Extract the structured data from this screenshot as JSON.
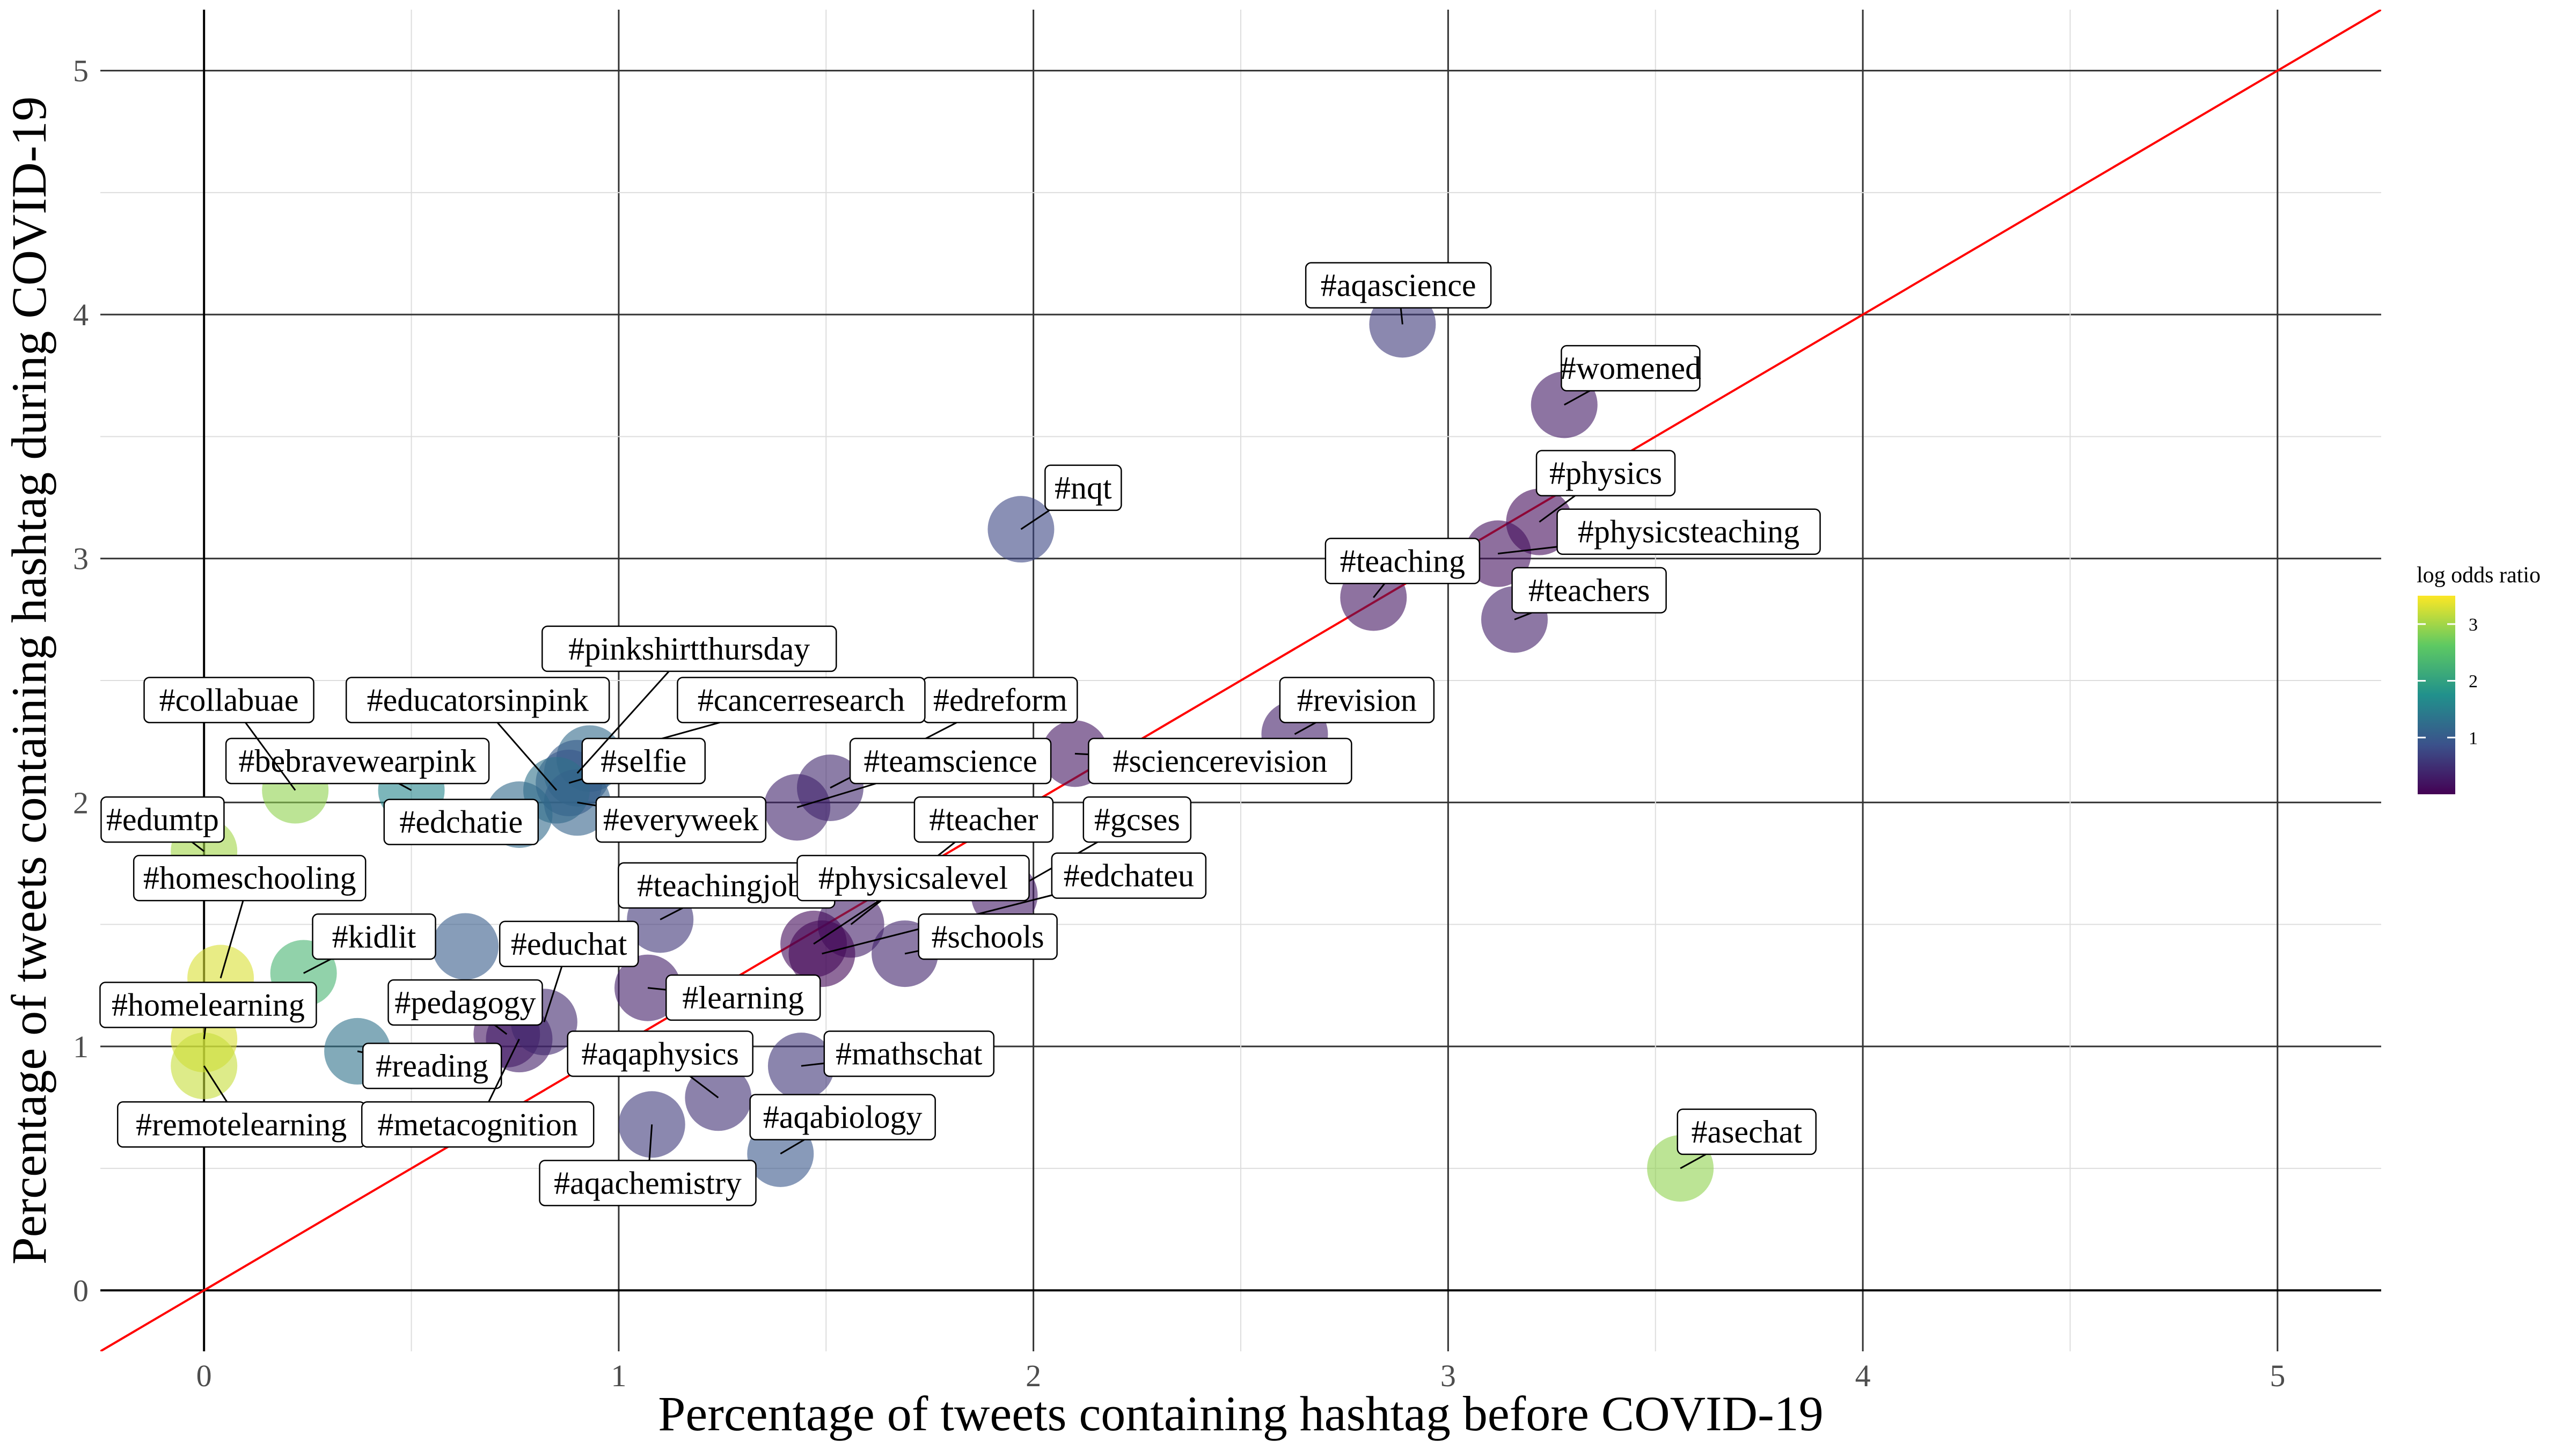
{
  "chart_data": {
    "type": "scatter",
    "xlabel": "Percentage of tweets containing hashtag before COVID-19",
    "ylabel": "Percentage of tweets containing hashtag during COVID-19",
    "xlim": [
      -0.25,
      5.25
    ],
    "ylim": [
      -0.25,
      5.25
    ],
    "x_ticks": [
      "0",
      "1",
      "2",
      "3",
      "4",
      "5"
    ],
    "y_ticks": [
      "0",
      "1",
      "2",
      "3",
      "4",
      "5"
    ],
    "reference_line": {
      "slope": 1,
      "intercept": 0,
      "color": "#ff0000"
    },
    "grid": true,
    "legend": {
      "title": "log odds ratio",
      "placement": "right",
      "range": [
        0,
        3.5
      ],
      "ticks": [
        "1",
        "2",
        "3"
      ],
      "palette": "viridis"
    },
    "points": [
      {
        "label": "#aqascience",
        "x": 2.89,
        "y": 3.96,
        "log_odds": 0.6,
        "lx": 2.88,
        "ly": 4.12
      },
      {
        "label": "#womened",
        "x": 3.28,
        "y": 3.63,
        "log_odds": 0.25,
        "lx": 3.44,
        "ly": 3.78
      },
      {
        "label": "#physics",
        "x": 3.22,
        "y": 3.15,
        "log_odds": 0.1,
        "lx": 3.38,
        "ly": 3.35
      },
      {
        "label": "#physicsteaching",
        "x": 3.12,
        "y": 3.02,
        "log_odds": 0.15,
        "lx": 3.58,
        "ly": 3.11
      },
      {
        "label": "#teaching",
        "x": 2.82,
        "y": 2.84,
        "log_odds": 0.2,
        "lx": 2.89,
        "ly": 2.99
      },
      {
        "label": "#teachers",
        "x": 3.16,
        "y": 2.75,
        "log_odds": 0.3,
        "lx": 3.34,
        "ly": 2.87
      },
      {
        "label": "#nqt",
        "x": 1.97,
        "y": 3.12,
        "log_odds": 0.75,
        "lx": 2.12,
        "ly": 3.29
      },
      {
        "label": "#revision",
        "x": 2.63,
        "y": 2.28,
        "log_odds": 0.3,
        "lx": 2.78,
        "ly": 2.42
      },
      {
        "label": "#sciencerevision",
        "x": 2.1,
        "y": 2.2,
        "log_odds": 0.2,
        "lx": 2.45,
        "ly": 2.17
      },
      {
        "label": "#edreform",
        "x": 1.51,
        "y": 2.06,
        "log_odds": 0.4,
        "lx": 1.92,
        "ly": 2.42
      },
      {
        "label": "#teamscience",
        "x": 1.43,
        "y": 1.98,
        "log_odds": 0.35,
        "lx": 1.8,
        "ly": 2.17
      },
      {
        "label": "#cancerresearch",
        "x": 0.93,
        "y": 2.18,
        "log_odds": 1.2,
        "lx": 1.44,
        "ly": 2.42
      },
      {
        "label": "#selfie",
        "x": 0.88,
        "y": 2.08,
        "log_odds": 0.9,
        "lx": 1.06,
        "ly": 2.17
      },
      {
        "label": "#pinkshirtthursday",
        "x": 0.9,
        "y": 2.12,
        "log_odds": 1.0,
        "lx": 1.17,
        "ly": 2.63
      },
      {
        "label": "#educatorsinpink",
        "x": 0.85,
        "y": 2.05,
        "log_odds": 1.3,
        "lx": 0.66,
        "ly": 2.42
      },
      {
        "label": "#bebravewearpink",
        "x": 0.5,
        "y": 2.05,
        "log_odds": 1.6,
        "lx": 0.37,
        "ly": 2.17
      },
      {
        "label": "#everyweek",
        "x": 0.9,
        "y": 2.0,
        "log_odds": 1.1,
        "lx": 1.15,
        "ly": 1.93
      },
      {
        "label": "#edchatie",
        "x": 0.76,
        "y": 1.95,
        "log_odds": 1.2,
        "lx": 0.62,
        "ly": 1.92
      },
      {
        "label": "#collabuae",
        "x": 0.22,
        "y": 2.05,
        "log_odds": 2.9,
        "lx": 0.06,
        "ly": 2.42
      },
      {
        "label": "#edumtp",
        "x": 0.0,
        "y": 1.8,
        "log_odds": 3.0,
        "lx": -0.1,
        "ly": 1.93
      },
      {
        "label": "#homeschooling",
        "x": 0.04,
        "y": 1.28,
        "log_odds": 3.3,
        "lx": 0.11,
        "ly": 1.69
      },
      {
        "label": "#kidlit",
        "x": 0.24,
        "y": 1.3,
        "log_odds": 2.3,
        "lx": 0.41,
        "ly": 1.45
      },
      {
        "label": "#homelearning",
        "x": 0.0,
        "y": 1.03,
        "log_odds": 3.3,
        "lx": 0.01,
        "ly": 1.17
      },
      {
        "label": "#remotelearning",
        "x": 0.0,
        "y": 0.92,
        "log_odds": 3.2,
        "lx": 0.09,
        "ly": 0.68
      },
      {
        "label": "#reading",
        "x": 0.37,
        "y": 0.98,
        "log_odds": 1.3,
        "lx": 0.55,
        "ly": 0.92
      },
      {
        "label": "#pedagogy",
        "x": 0.73,
        "y": 1.05,
        "log_odds": 0.2,
        "lx": 0.63,
        "ly": 1.18
      },
      {
        "label": "#metacognition",
        "x": 0.76,
        "y": 1.03,
        "log_odds": 0.3,
        "lx": 0.66,
        "ly": 0.68
      },
      {
        "label": "#educhat",
        "x": 0.82,
        "y": 1.1,
        "log_odds": 0.4,
        "lx": 0.88,
        "ly": 1.42
      },
      {
        "label": "#edchatie_point",
        "x": 0.63,
        "y": 1.41,
        "log_odds": 1.0,
        "lx": 0.63,
        "ly": 1.41
      },
      {
        "label": "#teachingjobs",
        "x": 1.1,
        "y": 1.52,
        "log_odds": 0.55,
        "lx": 1.26,
        "ly": 1.66
      },
      {
        "label": "#learning",
        "x": 1.07,
        "y": 1.24,
        "log_odds": 0.3,
        "lx": 1.3,
        "ly": 1.2
      },
      {
        "label": "#aqaphysics",
        "x": 1.24,
        "y": 0.79,
        "log_odds": 0.5,
        "lx": 1.1,
        "ly": 0.97
      },
      {
        "label": "#mathschat",
        "x": 1.44,
        "y": 0.92,
        "log_odds": 0.55,
        "lx": 1.7,
        "ly": 0.97
      },
      {
        "label": "#aqabiology",
        "x": 1.39,
        "y": 0.56,
        "log_odds": 0.95,
        "lx": 1.54,
        "ly": 0.71
      },
      {
        "label": "#aqachemistry",
        "x": 1.08,
        "y": 0.68,
        "log_odds": 0.6,
        "lx": 1.07,
        "ly": 0.44
      },
      {
        "label": "#teacher",
        "x": 1.56,
        "y": 1.5,
        "log_odds": 0.3,
        "lx": 1.88,
        "ly": 1.93
      },
      {
        "label": "#gcses",
        "x": 1.93,
        "y": 1.62,
        "log_odds": 0.25,
        "lx": 2.25,
        "ly": 1.93
      },
      {
        "label": "#physicsalevel",
        "x": 1.47,
        "y": 1.42,
        "log_odds": 0.1,
        "lx": 1.71,
        "ly": 1.69
      },
      {
        "label": "#edchateu",
        "x": 1.49,
        "y": 1.38,
        "log_odds": 0.05,
        "lx": 2.23,
        "ly": 1.7
      },
      {
        "label": "#schools",
        "x": 1.69,
        "y": 1.38,
        "log_odds": 0.35,
        "lx": 1.89,
        "ly": 1.45
      },
      {
        "label": "#asechat",
        "x": 3.56,
        "y": 0.5,
        "log_odds": 2.9,
        "lx": 3.72,
        "ly": 0.65
      }
    ]
  }
}
